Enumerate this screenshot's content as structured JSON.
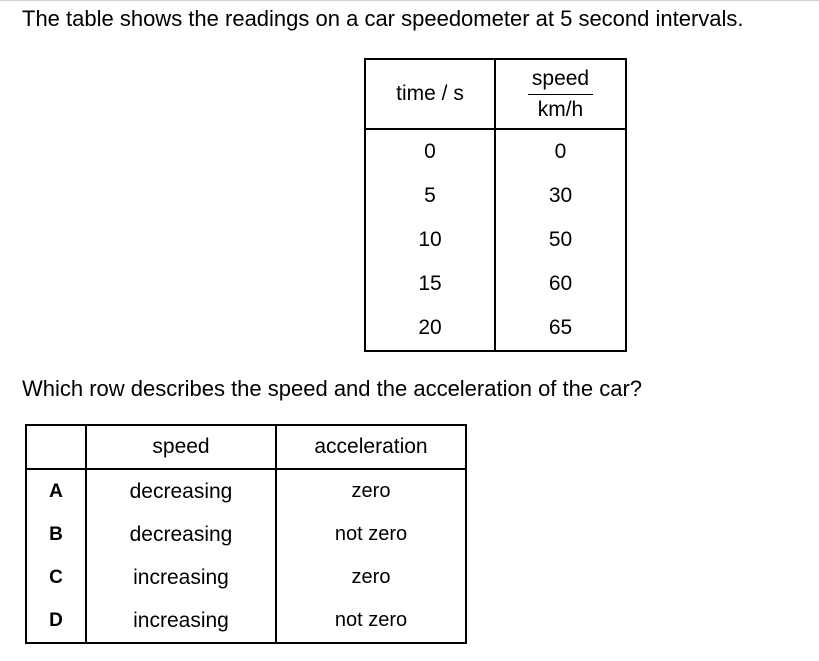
{
  "intro": "The table shows the readings on a car speedometer at 5 second intervals.",
  "speedometer_table": {
    "header_time": "time / s",
    "header_speed_num": "speed",
    "header_speed_den": "km/h",
    "rows": [
      {
        "time": "0",
        "speed": "0"
      },
      {
        "time": "5",
        "speed": "30"
      },
      {
        "time": "10",
        "speed": "50"
      },
      {
        "time": "15",
        "speed": "60"
      },
      {
        "time": "20",
        "speed": "65"
      }
    ]
  },
  "question": "Which row describes the speed and the acceleration of the car?",
  "options_table": {
    "header_speed": "speed",
    "header_acceleration": "acceleration",
    "rows": [
      {
        "letter": "A",
        "speed": "decreasing",
        "acceleration": "zero"
      },
      {
        "letter": "B",
        "speed": "decreasing",
        "acceleration": "not zero"
      },
      {
        "letter": "C",
        "speed": "increasing",
        "acceleration": "zero"
      },
      {
        "letter": "D",
        "speed": "increasing",
        "acceleration": "not zero"
      }
    ]
  }
}
